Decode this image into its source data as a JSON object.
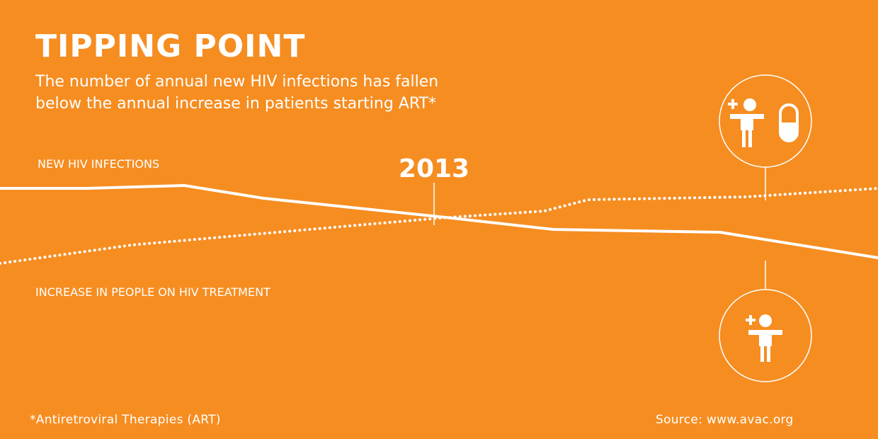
{
  "title": "TIPPING POINT",
  "subtitle_line1": "The number of annual new HIV infections has fallen",
  "subtitle_line2": "below the annual increase in patients starting ART*",
  "footnote": "*Antiretroviral Therapies (ART)",
  "source": "Source: www.avac.org",
  "colors": {
    "background": "#F68D21",
    "foreground": "#FFFFFF"
  },
  "icons": {
    "top_circle": [
      "person-plus-icon",
      "pill-capsule-icon"
    ],
    "bottom_circle": [
      "person-plus-icon"
    ]
  },
  "chart_data": {
    "type": "line",
    "title": "TIPPING POINT",
    "xlabel": "",
    "ylabel": "",
    "grid": false,
    "annotation": {
      "x": 2013,
      "label": "2013"
    },
    "series": [
      {
        "name": "NEW HIV INFECTIONS",
        "style": "solid",
        "points": [
          [
            0,
            78
          ],
          [
            10,
            78
          ],
          [
            21,
            80
          ],
          [
            30,
            71
          ],
          [
            50,
            58
          ],
          [
            63,
            49
          ],
          [
            82,
            47
          ],
          [
            100,
            29
          ]
        ]
      },
      {
        "name": "INCREASE IN PEOPLE ON HIV TREATMENT",
        "style": "dotted",
        "points": [
          [
            0,
            25
          ],
          [
            15,
            38
          ],
          [
            50,
            57
          ],
          [
            62,
            62
          ],
          [
            67,
            70
          ],
          [
            85,
            72
          ],
          [
            100,
            78
          ]
        ]
      }
    ]
  }
}
